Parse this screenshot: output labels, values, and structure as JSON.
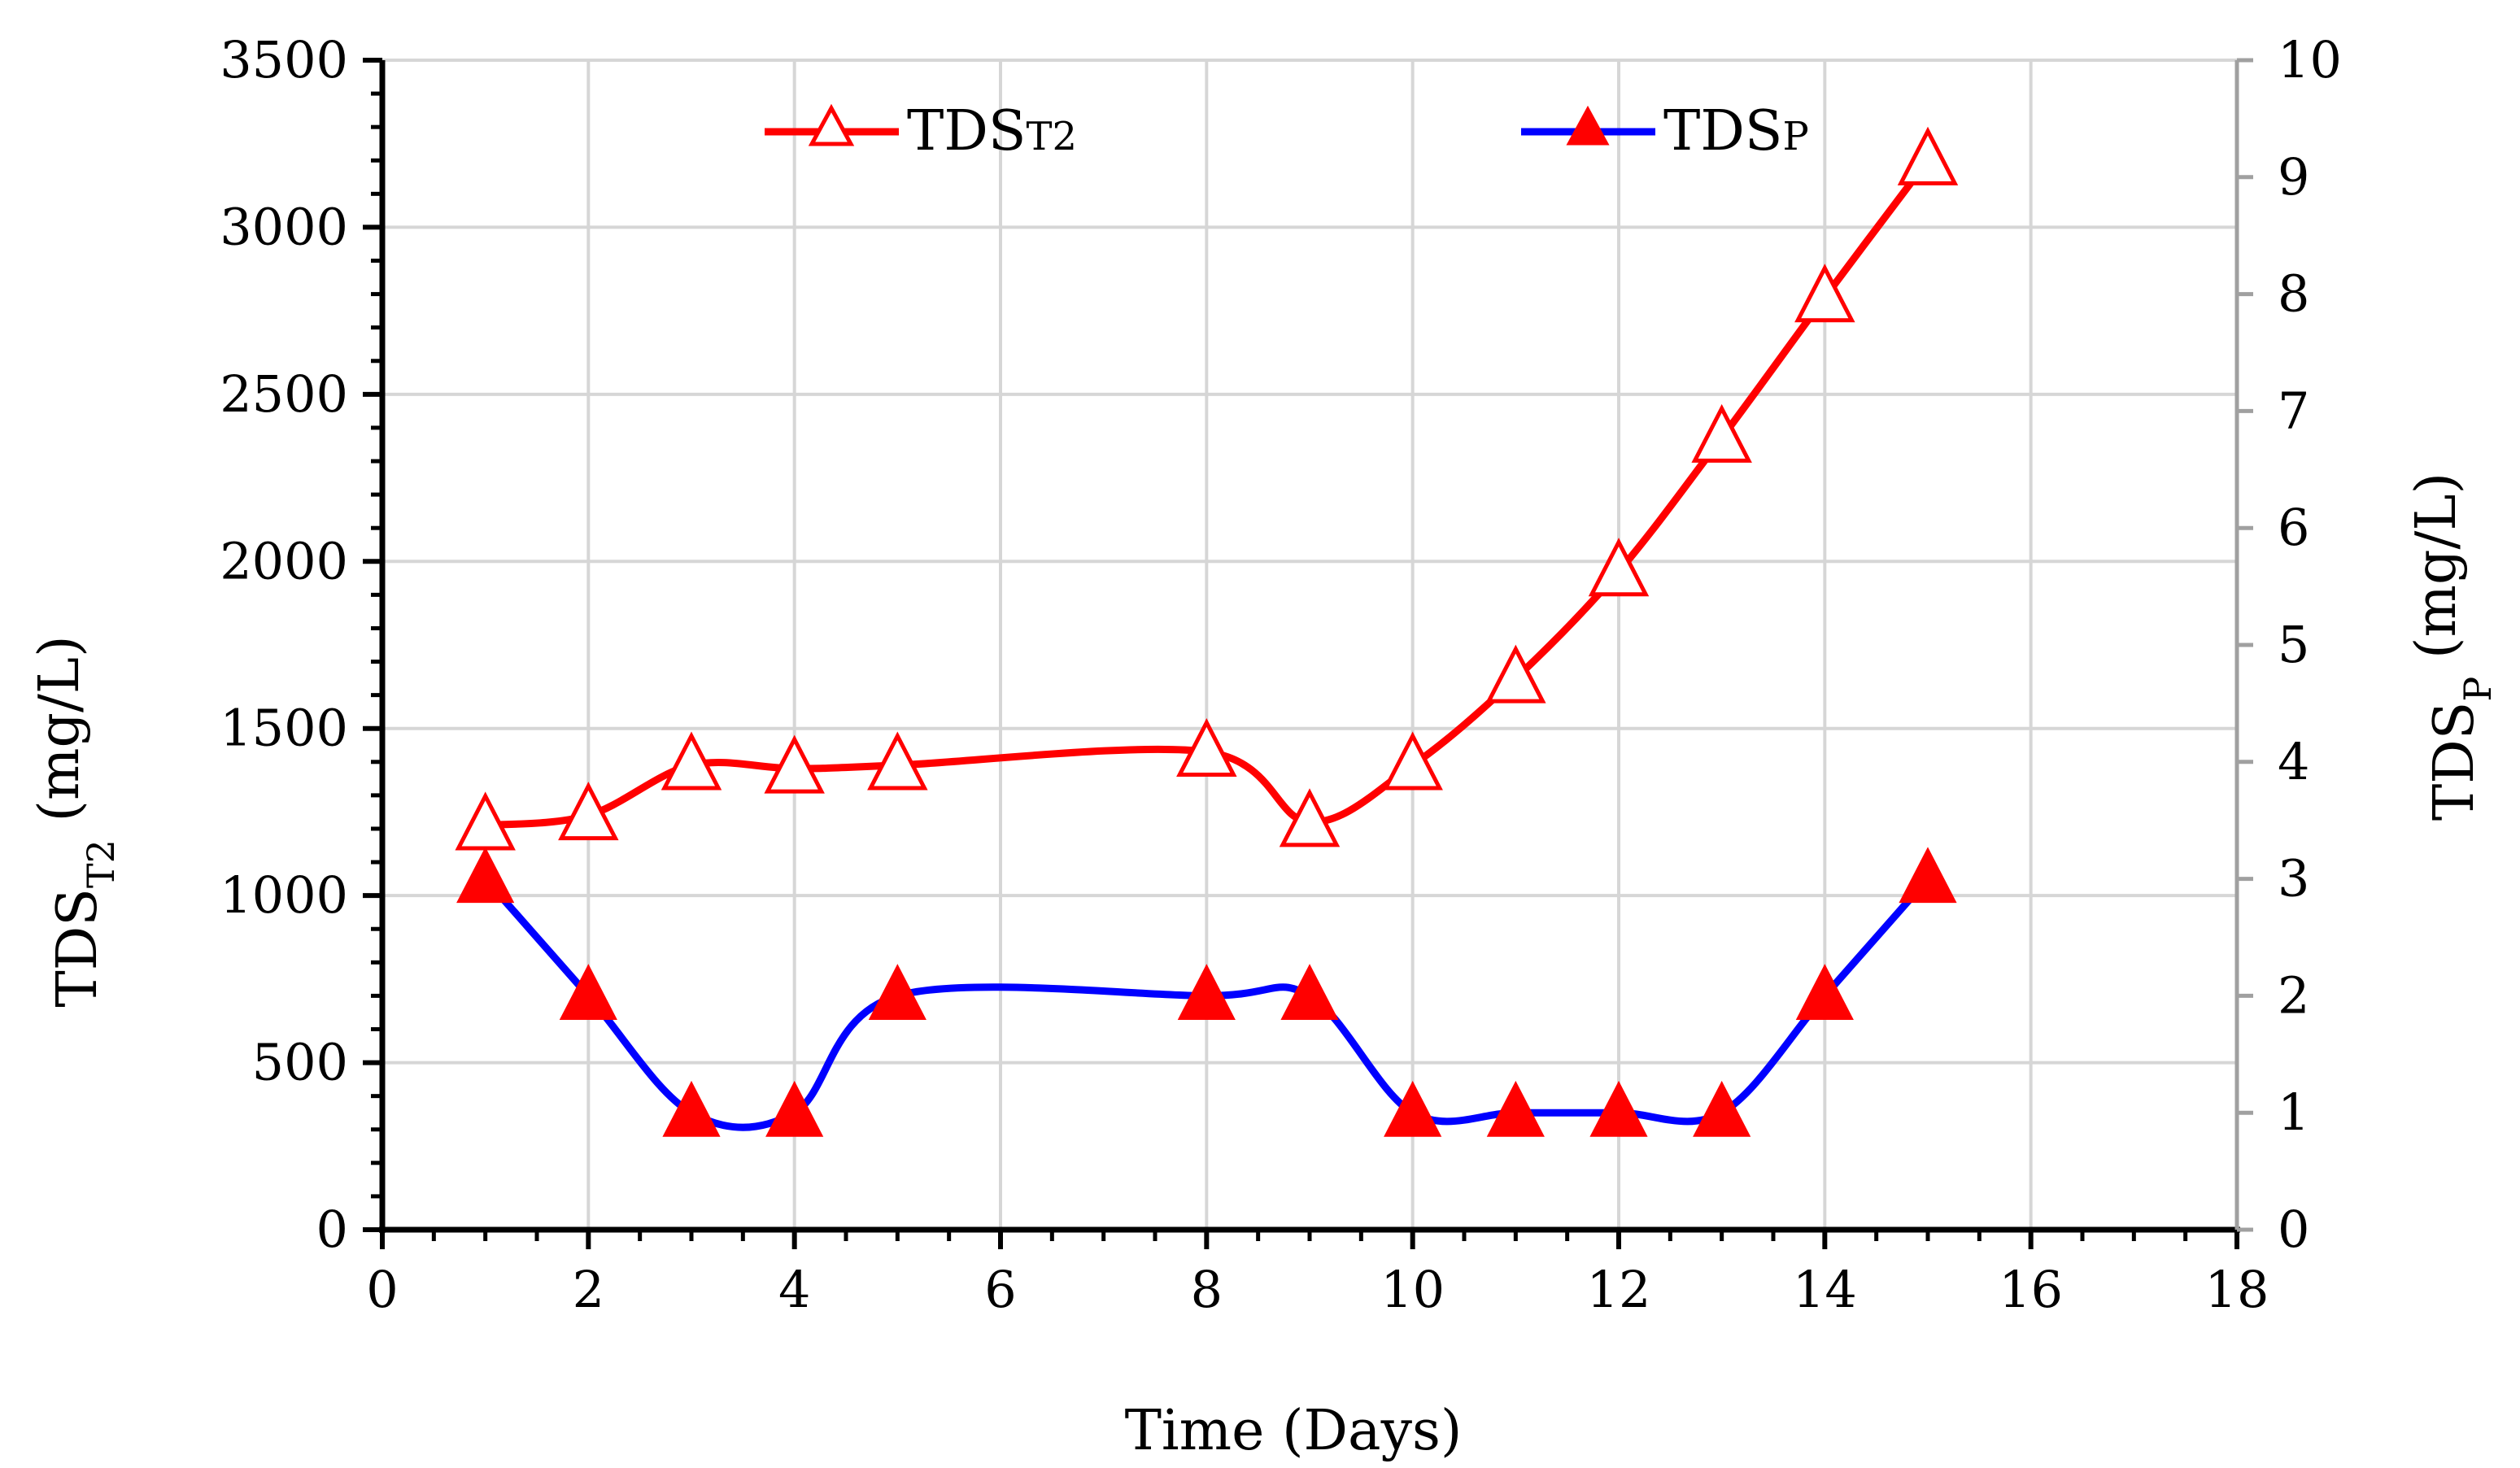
{
  "chart_data": {
    "type": "line",
    "title": "",
    "xlabel": "Time (Days)",
    "ylabel_left": {
      "main": "TDS",
      "sub": "T2",
      "unit": " (mg/L)"
    },
    "ylabel_right": {
      "main": "TDS",
      "sub": "P",
      "unit": " (mg/L)"
    },
    "xlim": [
      0,
      18
    ],
    "ylim_left": [
      0,
      3500
    ],
    "ylim_right": [
      0,
      10
    ],
    "x_ticks": [
      "0",
      "2",
      "4",
      "6",
      "8",
      "10",
      "12",
      "14",
      "16",
      "18"
    ],
    "y_left_ticks": [
      "0",
      "500",
      "1000",
      "1500",
      "2000",
      "2500",
      "3000",
      "3500"
    ],
    "y_right_ticks": [
      "0",
      "1",
      "2",
      "3",
      "4",
      "5",
      "6",
      "7",
      "8",
      "9",
      "10"
    ],
    "grid": true,
    "legend_position": "top",
    "series": [
      {
        "name": "TDS",
        "name_sub": "T2",
        "axis": "left",
        "color": "#ff0000",
        "marker": "open-triangle",
        "x": [
          1,
          2,
          3,
          4,
          5,
          8,
          9,
          10,
          11,
          12,
          13,
          14,
          15
        ],
        "values": [
          1210,
          1240,
          1390,
          1380,
          1390,
          1430,
          1220,
          1390,
          1650,
          1970,
          2370,
          2790,
          3200
        ]
      },
      {
        "name": "TDS",
        "name_sub": "P",
        "axis": "right",
        "color": "#0000ff",
        "marker_color": "#ff0000",
        "marker": "filled-triangle",
        "x": [
          1,
          2,
          3,
          4,
          5,
          8,
          9,
          10,
          11,
          12,
          13,
          14,
          15
        ],
        "values": [
          3,
          2,
          1,
          1,
          2,
          2,
          2,
          1,
          1,
          1,
          1,
          2,
          3
        ]
      }
    ]
  }
}
